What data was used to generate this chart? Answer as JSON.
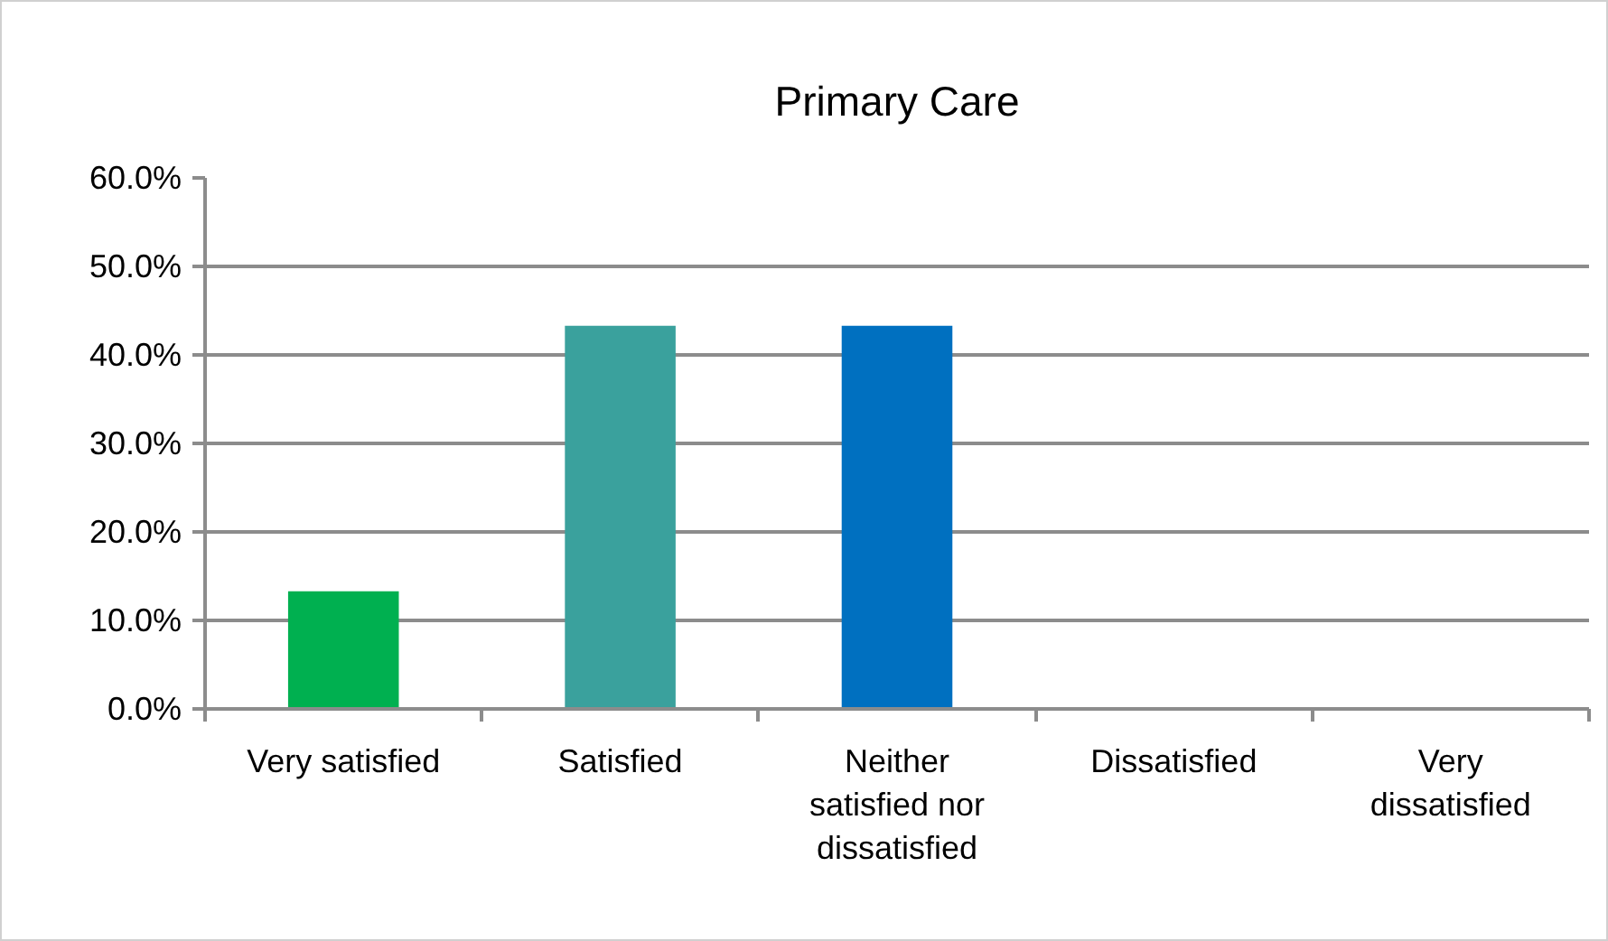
{
  "chart_data": {
    "type": "bar",
    "title": "Primary Care",
    "categories": [
      "Very satisfied",
      "Satisfied",
      "Neither satisfied nor dissatisfied",
      "Dissatisfied",
      "Very dissatisfied"
    ],
    "values": [
      13.3,
      43.3,
      43.3,
      0,
      0
    ],
    "colors": [
      "#00b050",
      "#3aa19d",
      "#0070c0",
      "#0070c0",
      "#0070c0"
    ],
    "ylim": [
      0,
      60
    ],
    "yticks": [
      {
        "value": 0,
        "label": "0.0%"
      },
      {
        "value": 10,
        "label": "10.0%"
      },
      {
        "value": 20,
        "label": "20.0%"
      },
      {
        "value": 30,
        "label": "30.0%"
      },
      {
        "value": 40,
        "label": "40.0%"
      },
      {
        "value": 50,
        "label": "50.0%"
      },
      {
        "value": 60,
        "label": "60.0%"
      }
    ],
    "grid": "y"
  }
}
